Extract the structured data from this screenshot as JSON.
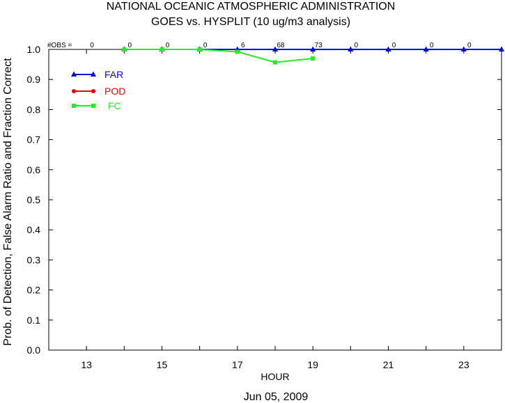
{
  "chart_data": {
    "type": "line",
    "title": "NATIONAL OCEANIC ATMOSPHERIC ADMINISTRATION",
    "subtitle": "GOES vs. HYSPLIT  (10 ug/m3 analysis)",
    "xlabel": "HOUR",
    "ylabel": "Prob. of Detection, False Alarm Ratio and Fraction Correct",
    "date_label": "Jun 05, 2009",
    "xlim": [
      12,
      24
    ],
    "ylim": [
      0.0,
      1.0
    ],
    "x_ticks": [
      13,
      15,
      17,
      19,
      21,
      23
    ],
    "y_ticks": [
      "0.0",
      "0.1",
      "0.2",
      "0.3",
      "0.4",
      "0.5",
      "0.6",
      "0.7",
      "0.8",
      "0.9",
      "1.0"
    ],
    "obs_label": "#OBS =",
    "obs": [
      {
        "hour": 13,
        "count": "0"
      },
      {
        "hour": 14,
        "count": "0"
      },
      {
        "hour": 15,
        "count": "0"
      },
      {
        "hour": 16,
        "count": "0"
      },
      {
        "hour": 17,
        "count": "6"
      },
      {
        "hour": 18,
        "count": "68"
      },
      {
        "hour": 19,
        "count": "73"
      },
      {
        "hour": 20,
        "count": "0"
      },
      {
        "hour": 21,
        "count": "0"
      },
      {
        "hour": 22,
        "count": "0"
      },
      {
        "hour": 23,
        "count": "0"
      }
    ],
    "legend_position": "top-left",
    "series": [
      {
        "name": "FAR",
        "color": "#0000ee",
        "marker": "triangle",
        "x": [
          14,
          15,
          16,
          17,
          18,
          19,
          20,
          21,
          22,
          23,
          24
        ],
        "y": [
          1.0,
          1.0,
          1.0,
          1.0,
          1.0,
          1.0,
          1.0,
          1.0,
          1.0,
          1.0,
          1.0
        ]
      },
      {
        "name": "POD",
        "color": "#ee0000",
        "marker": "circle",
        "x": [
          14,
          15,
          16
        ],
        "y": [
          1.0,
          1.0,
          1.0
        ]
      },
      {
        "name": "FC",
        "color": "#22ee22",
        "marker": "square",
        "x": [
          14,
          15,
          16,
          17,
          18,
          19
        ],
        "y": [
          1.0,
          1.0,
          1.0,
          0.992,
          0.957,
          0.97
        ]
      }
    ]
  }
}
